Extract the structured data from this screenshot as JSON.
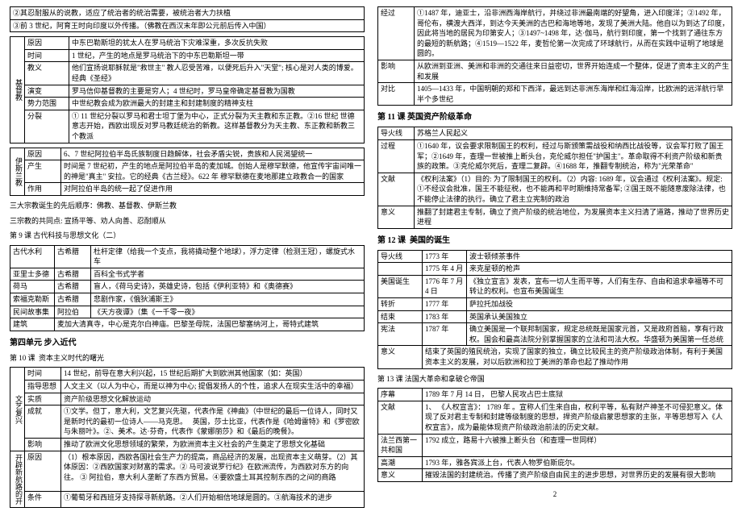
{
  "left": {
    "intro_rows": [
      "②其忍耐服从的说教，适应了统治者的统治需要，被统治者大力扶植",
      "③前 3 世纪，阿育王时向印度以外传播。（佛教在西汉末年即公元前后传入中国）"
    ],
    "christ": {
      "label": "基督教",
      "rows": [
        [
          "原因",
          "中东巴勒斯坦的犹太人在罗马统治下灾难深重，多次反抗失败"
        ],
        [
          "时间",
          "1 世纪，产生的地点是罗马统治下的中东巴勒斯坦一带"
        ],
        [
          "教义",
          "他们宣扬说耶稣就是\"救世主\" 教人忍受苦难，以便死后升入\"天堂\"; 核心是对人类的博爱。经典《圣经》"
        ],
        [
          "演变",
          "罗马信仰基督教的主要是穷人；4 世纪时，罗马皇帝确定基督教为国教"
        ],
        [
          "势力范围",
          "中世纪教会成为欧洲最大的封建主和封建制度的精神支柱"
        ],
        [
          "分裂",
          "① 11 世纪分裂以罗马和君士坦丁堡为中心，正式分裂为天主教和东正教。②16 世纪 世德意志开始，西欧出现反对罗马教廷统治的新教。这样基督教分为天主教、东正教和新教三个教派"
        ]
      ]
    },
    "islam": {
      "label": "伊斯兰教",
      "rows": [
        [
          "原因",
          "6、7 世纪阿拉伯半岛氏族制度日趋解体，社会矛盾尖锐，贵族和人民渴望统一"
        ],
        [
          "产生",
          "时间是 7 世纪初，产生的地点是阿拉伯半岛的麦加城。创始人是穆罕默德，他宣传宇宙间唯一的神是\"真主\" 安拉。它的经典《古兰经》。622 年 穆罕默德在麦地那建立政教合一的国家"
        ],
        [
          "作用",
          "对阿拉伯半岛的统一起了促进作用"
        ]
      ]
    },
    "three_religions": [
      "三大宗教诞生的先后顺序：佛教、基督教、伊斯兰教",
      "三宗教的共同点: 宣扬平等、劝人向善、忍耐顺从"
    ],
    "lesson9_title": "第 9 课 古代科技与思想文化（二）",
    "lesson9": [
      [
        "古代水利",
        "古希腊",
        "杜杆定律（给我一个支点，我将撬动整个地球），浮力定律（检测王冠），螺旋式水车"
      ],
      [
        "亚里士多德",
        "古希腊",
        "百科全书式学者"
      ],
      [
        "荷马",
        "古希腊",
        "盲人，《荷马史诗》，英雄史诗，包括《伊利亚特》和《奥德赛》"
      ],
      [
        "索福克勒斯",
        "古希腊",
        "悲剧作家，《俄狄浦斯王》"
      ],
      [
        "民间故事集",
        "阿拉伯",
        "《天方夜谭》（集《一千零一夜》"
      ],
      [
        "建筑",
        "麦加大清真寺，中心是克尔白神庙。巴黎圣母院，法国巴黎塞纳河上，哥特式建筑"
      ]
    ],
    "unit4_title": "第四单元 步入近代",
    "lesson10_title": "第 10 课  资本主义时代的曙光",
    "wenyi": {
      "label": "文艺复兴",
      "rows": [
        [
          "时间",
          "14 世纪，前导在意大利兴起，15 世纪后期扩大到欧洲其他国家（如：英国）"
        ],
        [
          "指导思想",
          "人文主义（以人为中心，而是以神为中心; 提倡发扬人的个性，追求人在现实生活中的幸福）"
        ],
        [
          "实质",
          "资产阶级思想文化解放运动"
        ],
        [
          "成就",
          "①文学。但丁，意大利，文艺复兴先驱，代表作是《神曲》（中世纪的最后一位诗人，同时又是新时代的最初一位诗人——马克思。   英国，莎士比亚，代表作是《哈姆雷特》和《罗密欧与朱丽叶》。②、美术。达·芬奇，代表作《蒙娜丽莎》和《最后的晚餐》。"
        ],
        [
          "影响",
          "推动了欧洲文化思想领域的繁荣，为欧洲资本主义社会的产生奠定了思想文化基础"
        ]
      ]
    },
    "xinhang": {
      "label": "开辟新航路的开",
      "rows": [
        [
          "原因",
          "（1）根本原因，西欧各国社会生产力的提高，商品经济的发展，出现资本主义萌芽。（2）其体原因：②西欧国家对财富的需求。② 马可波说罗行纪》在欧洲流传，为西欧对东方的向往。 ③ 阿拉伯，意大利人垄断了东西方贸易。④要欧盛土耳其控制东西的之间的商路"
        ],
        [
          "条件",
          "①葡萄牙和西班牙支持探寻新航路。②人们开始相信地球是圆的。③航海技术的进步"
        ]
      ]
    }
  },
  "right": {
    "voyage": [
      [
        "经过",
        "①1487 年，迪亚士，沿非洲西海岸航行，并绕过非洲最南端的好望角，进入印度洋；②1492 年，哥伦布，横渡大西洋，到达今天美洲的古巴和海地等地，发现了美洲大陆。他自以为到达了印度，因此将当地的居民为印第安人；③1497~1498 年，达·伽马，航行到印度，第一个找到了通往东方的最短的新航路；④1519—1522 年，麦哲伦第一次完成了环球航行，从而在实践中证明了地球是圆的。"
      ],
      [
        "影响",
        "从欧洲到亚洲、美洲和非洲的交通往来日益密切，世界开始连成一个整体，促进了资本主义的产生和发展"
      ],
      [
        "对比",
        "1405—1433 年，中国明朝的郑和下西洋，最远到达非洲东海岸和红海沿岸，比欧洲的远洋航行早半个多世纪"
      ]
    ],
    "lesson11_title": "第 11 课 英国资产阶级革命",
    "lesson11": [
      [
        "导火线",
        "苏格兰人民起义"
      ],
      [
        "过程",
        "①1640 年，议会要求限制国王的权利，经过与斯颁策需战役和纳西比战役等，议会军打败了国王军；②1649 年，查理一世被推上断头台，克伦威尔担任\"护国主\"。革命取得不利资产阶级和新贵族的政策。③克伦威尔死后，查理二复辟。④1688 年，推翻专制统治，称为\"光荣革命\""
      ],
      [
        "文献",
        "《权利法案》（1）目的: 为了限制国王的权利。（2）内容: 1689 年，议会通过《权利法案》。规定: ①不经议会批准，国王不能征税，也不能再和平时期维持常备军; ②国王既不能随意废除法律，也不能停止法律的执行。确立了君主立宪制的政治"
      ],
      [
        "意义",
        "推翻了封建君主专制，确立了资产阶级的统治地位，为发展资本主义扫清了道路，推动了世界历史进程"
      ]
    ],
    "lesson12_title": "第 12 课  美国的诞生",
    "lesson12": [
      [
        "导火线",
        "1773 年",
        "",
        "波士顿倾茶事件"
      ],
      [
        "",
        "1775 年 4 月",
        "",
        "来克星顿的枪声"
      ],
      [
        "美国诞生",
        "1776 年 7 月 4 日",
        "",
        "《独立宣言》发表，宣布一切人生而平等，人们有生存、自由和追求幸福等不可转让的权利。也宣布美国诞生"
      ],
      [
        "转折",
        "1777 年",
        "",
        "萨拉托加战役"
      ],
      [
        "结束",
        "1783 年",
        "",
        "英国承认美国独立"
      ],
      [
        "宪法",
        "1787 年",
        "",
        "确立美国是一个联邦制国家，规定总统既是国家元首，又是政府首脑，享有行政权。国会和最高法院分别掌握国家的立法和司法大权。华盛顿为美国第一任总统"
      ],
      [
        "意义",
        "",
        "结束了英国的殖民统治，实现了国家的独立，确立比较民主的资产阶级政治体制，有利于美国资本主义的发展，对以后欧洲和拉丁美洲的革命也起了推动作用"
      ]
    ],
    "lesson13_title": "第 13 课 法国大革命和拿破仑帝国",
    "lesson13": [
      [
        "序幕",
        "1789 年 7 月 14 日， 巴黎人民攻占巴士底狱"
      ],
      [
        "文献",
        "1、 《人权宣言》： 1789 年 。宣称人们生来自由，权利平等，私有财产神圣不可侵犯意义。体现了反对君主专制和封建等级制度的思想，捍资产阶级启蒙思想家的主张，平等思想写入《人权宣言》，成为最能体现资产阶级政治前法的历史文献。"
      ],
      [
        "法兰西第一共和国",
        "1792 成立，路易十六被推上断头台（和查理一世同样）"
      ],
      [
        "高潮",
        "1793 年，雅各宾派上台，代表人物罗伯斯庇尔。"
      ],
      [
        "意义",
        "摧毁法国的封建统治。传播了资产阶级自由民主的进步思想，对世界历史的发展有很大影响"
      ]
    ]
  },
  "pagenum": "2"
}
